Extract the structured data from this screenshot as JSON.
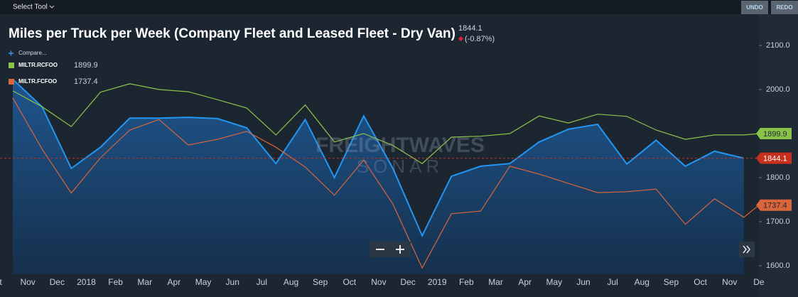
{
  "toolbar": {
    "select_tool": "Select Tool",
    "undo": "UNDO",
    "redo": "REDO"
  },
  "compare": "Compare...",
  "watermark": [
    "FREIGHTWAVES",
    "SONAR"
  ],
  "chart_data": {
    "type": "line",
    "title": "Miles per Truck per Week (Company Fleet and Leased Fleet - Dry Van)",
    "change": "(-0.87%)",
    "categories": [
      "ct",
      "Nov",
      "Dec",
      "2018",
      "Feb",
      "Mar",
      "Apr",
      "May",
      "Jun",
      "Jul",
      "Aug",
      "Sep",
      "Oct",
      "Nov",
      "Dec",
      "2019",
      "Feb",
      "Mar",
      "Apr",
      "May",
      "Jun",
      "Jul",
      "Aug",
      "Sep",
      "Oct",
      "Nov",
      "De"
    ],
    "series": [
      {
        "color": "#2196f3",
        "area": true,
        "values": [
          2023,
          1961,
          1821,
          1869,
          1935,
          1935,
          1937,
          1934,
          1913,
          1832,
          1932,
          1800,
          1940,
          1821,
          1668,
          1803,
          1826,
          1832,
          1881,
          1910,
          1921,
          1831,
          1885,
          1826,
          1860,
          1844.1,
          null
        ]
      },
      {
        "name": "MILTR.RCFOO",
        "color": "#8bc34a",
        "values": [
          1997,
          1961,
          1916,
          1994,
          2013,
          2000,
          1995,
          1977,
          1958,
          1897,
          1965,
          1881,
          1900,
          1873,
          1832,
          1892,
          1894,
          1900,
          1940,
          1924,
          1944,
          1939,
          1908,
          1887,
          1897,
          1897,
          1899.9
        ]
      },
      {
        "name": "MILTR.FCFOO",
        "color": "#d9653b",
        "values": [
          1981,
          1865,
          1765,
          1845,
          1908,
          1932,
          1874,
          1887,
          1905,
          1869,
          1824,
          1760,
          1840,
          1740,
          1595,
          1718,
          1724,
          1826,
          1808,
          1787,
          1766,
          1768,
          1774,
          1694,
          1752,
          1710,
          1737.4
        ]
      }
    ],
    "ylim": [
      1580,
      2160
    ],
    "yticks": [
      {
        "value": 1600,
        "label": "1600.0"
      },
      {
        "value": 1700,
        "label": "1700.0"
      },
      {
        "value": 1800,
        "label": "1800.0"
      },
      {
        "value": 1900,
        "label": "1900.0"
      },
      {
        "value": 2000,
        "label": "2000.0"
      },
      {
        "value": 2100,
        "label": "2100.0"
      }
    ]
  }
}
